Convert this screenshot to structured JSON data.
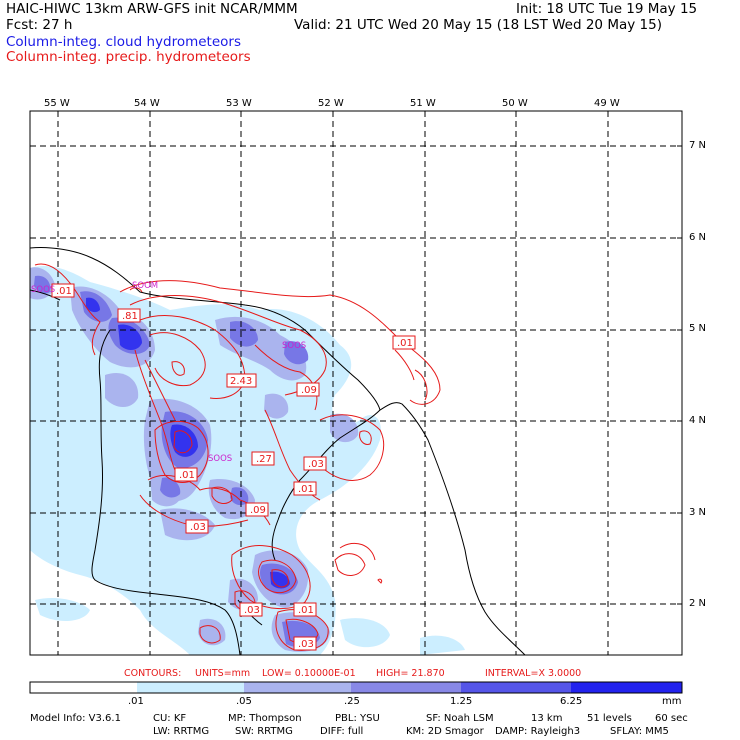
{
  "header": {
    "left1": "HAIC-HIWC 13km ARW-GFS init    NCAR/MMM",
    "left2": "Fcst:    27 h",
    "right1": "Init: 18 UTC Tue 19 May 15",
    "right2": "Valid: 21 UTC Wed 20 May 15 (18 LST Wed 20 May 15)",
    "legend_cloud": "Column-integ. cloud hydrometeors",
    "legend_precip": "Column-integ. precip. hydrometeors"
  },
  "lon_labels": [
    "55 W",
    "54 W",
    "53 W",
    "52 W",
    "51 W",
    "50 W",
    "49 W"
  ],
  "lat_labels": [
    "7 N",
    "6 N",
    "5 N",
    "4 N",
    "3 N",
    "2 N"
  ],
  "place_labels": [
    "SOOM",
    "SOOS",
    "SOOS",
    "SOOS"
  ],
  "contour_labels": [
    ".01",
    ".81",
    "2.43",
    ".09",
    ".01",
    ".27",
    ".03",
    ".01",
    ".01",
    ".09",
    ".03",
    ".03",
    ".01",
    ".03"
  ],
  "contour_info": {
    "contours": "CONTOURS:",
    "units": "UNITS=mm",
    "low": "LOW=  0.10000E-01",
    "high": "HIGH=   21.870",
    "interval": "INTERVAL=X   3.0000"
  },
  "colorbar": {
    "ticks": [
      ".01",
      ".05",
      ".25",
      "1.25",
      "6.25"
    ],
    "unit": "mm",
    "colors": [
      "#ffffff",
      "#cceeff",
      "#aab4ee",
      "#8888e6",
      "#5555e8",
      "#2222ee"
    ]
  },
  "footer": {
    "line1": [
      "Model Info: V3.6.1",
      "CU: KF",
      "MP: Thompson",
      "PBL: YSU",
      "SF: Noah LSM",
      "13 km",
      "51 levels",
      "60 sec"
    ],
    "line2": [
      "LW: RRTMG",
      "SW: RRTMG",
      "DIFF: full",
      "KM: 2D Smagor",
      "DAMP: Rayleigh3",
      "SFLAY: MM5"
    ]
  }
}
